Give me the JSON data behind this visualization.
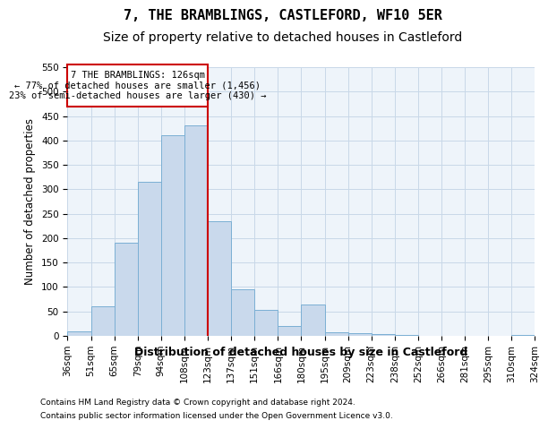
{
  "title": "7, THE BRAMBLINGS, CASTLEFORD, WF10 5ER",
  "subtitle": "Size of property relative to detached houses in Castleford",
  "xlabel": "Distribution of detached houses by size in Castleford",
  "ylabel": "Number of detached properties",
  "bin_labels": [
    "36sqm",
    "51sqm",
    "65sqm",
    "79sqm",
    "94sqm",
    "108sqm",
    "123sqm",
    "137sqm",
    "151sqm",
    "166sqm",
    "180sqm",
    "195sqm",
    "209sqm",
    "223sqm",
    "238sqm",
    "252sqm",
    "266sqm",
    "281sqm",
    "295sqm",
    "310sqm",
    "324sqm"
  ],
  "bar_heights": [
    10,
    60,
    190,
    315,
    410,
    430,
    235,
    95,
    53,
    20,
    65,
    8,
    5,
    3,
    1,
    0,
    0,
    0,
    0,
    1
  ],
  "bar_color": "#c9d9ec",
  "bar_edge_color": "#7bafd4",
  "vline_x_index": 6,
  "vline_color": "#cc0000",
  "annotation_text": "7 THE BRAMBLINGS: 126sqm\n← 77% of detached houses are smaller (1,456)\n23% of semi-detached houses are larger (430) →",
  "annotation_box_color": "#cc0000",
  "ylim": [
    0,
    550
  ],
  "yticks": [
    0,
    50,
    100,
    150,
    200,
    250,
    300,
    350,
    400,
    450,
    500,
    550
  ],
  "grid_color": "#c8d8e8",
  "background_color": "#eef4fa",
  "footer_line1": "Contains HM Land Registry data © Crown copyright and database right 2024.",
  "footer_line2": "Contains public sector information licensed under the Open Government Licence v3.0.",
  "title_fontsize": 11,
  "subtitle_fontsize": 10,
  "tick_fontsize": 7.5,
  "ylabel_fontsize": 8.5,
  "xlabel_fontsize": 9
}
